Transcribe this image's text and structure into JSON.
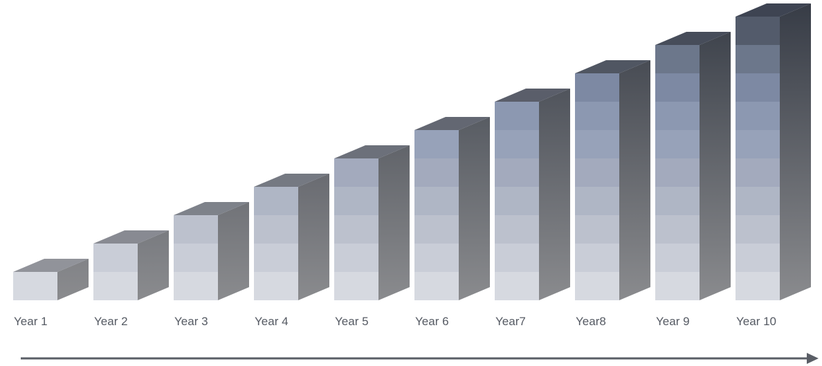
{
  "chart_data": {
    "type": "bar",
    "style": "3d-stacked-blocks",
    "categories": [
      "Year 1",
      "Year 2",
      "Year 3",
      "Year 4",
      "Year 5",
      "Year 6",
      "Year7",
      "Year8",
      "Year 9",
      "Year 10"
    ],
    "values": [
      1,
      2,
      3,
      4,
      5,
      6,
      7,
      8,
      9,
      10
    ],
    "title": "",
    "xlabel": "",
    "ylabel": "",
    "ylim": [
      0,
      10
    ],
    "grid": false,
    "legend": "none",
    "axis_arrow": "right",
    "colors": {
      "block_front_levels": [
        "#d6d9e0",
        "#c9cdd7",
        "#bcc1cd",
        "#afb6c5",
        "#a3aabd",
        "#97a2b9",
        "#8c98b1",
        "#7d89a3",
        "#6c778b",
        "#535b6b"
      ],
      "side_light": "#8a8b8e",
      "side_dark": "#373c46",
      "top_light": "#9a9ca2",
      "top_dark": "#3e4452",
      "arrow": "#5a5e66"
    }
  }
}
